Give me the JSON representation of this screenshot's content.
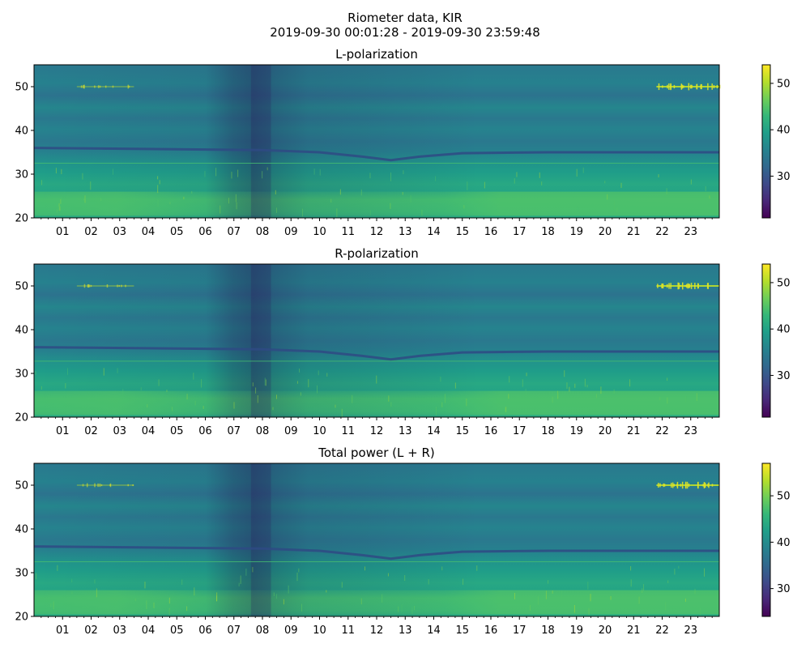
{
  "figure": {
    "title_line1": "Riometer data, KIR",
    "title_line2": "2019-09-30 00:01:28 - 2019-09-30 23:59:48"
  },
  "colormap": "viridis",
  "chart_data": [
    {
      "type": "heatmap",
      "title": "L-polarization",
      "xlabel": "",
      "ylabel": "",
      "xlim": [
        0,
        24
      ],
      "ylim": [
        20,
        55
      ],
      "x_tick_labels": [
        "01",
        "02",
        "03",
        "04",
        "05",
        "06",
        "07",
        "08",
        "09",
        "10",
        "11",
        "12",
        "13",
        "14",
        "15",
        "16",
        "17",
        "18",
        "19",
        "20",
        "21",
        "22",
        "23"
      ],
      "y_ticks": [
        20,
        30,
        40,
        50
      ],
      "colorbar": {
        "ticks": [
          30,
          40,
          50
        ],
        "range": [
          21,
          54
        ]
      },
      "features": {
        "horizontal_line_y": 32.5,
        "dip_curve": [
          [
            0,
            36
          ],
          [
            8,
            35.5
          ],
          [
            10,
            35
          ],
          [
            11.5,
            34
          ],
          [
            12.5,
            33.2
          ],
          [
            13.5,
            34
          ],
          [
            15,
            34.8
          ],
          [
            18,
            35
          ],
          [
            24,
            35
          ]
        ],
        "dark_vertical_band_x": [
          7.6,
          8.3
        ],
        "bright_band_y": [
          20.5,
          26
        ],
        "spiky_band_y": 50,
        "spiky_regions_x": [
          [
            1.5,
            3.5
          ],
          [
            21.8,
            24
          ]
        ]
      }
    },
    {
      "type": "heatmap",
      "title": "R-polarization",
      "xlabel": "",
      "ylabel": "",
      "xlim": [
        0,
        24
      ],
      "ylim": [
        20,
        55
      ],
      "x_tick_labels": [
        "01",
        "02",
        "03",
        "04",
        "05",
        "06",
        "07",
        "08",
        "09",
        "10",
        "11",
        "12",
        "13",
        "14",
        "15",
        "16",
        "17",
        "18",
        "19",
        "20",
        "21",
        "22",
        "23"
      ],
      "y_ticks": [
        20,
        30,
        40,
        50
      ],
      "colorbar": {
        "ticks": [
          30,
          40,
          50
        ],
        "range": [
          21,
          54
        ]
      },
      "features": {
        "horizontal_line_y": 32.8,
        "dip_curve": [
          [
            0,
            36
          ],
          [
            8,
            35.5
          ],
          [
            10,
            35
          ],
          [
            11.5,
            34
          ],
          [
            12.5,
            33.2
          ],
          [
            13.5,
            34
          ],
          [
            15,
            34.8
          ],
          [
            18,
            35
          ],
          [
            24,
            35
          ]
        ],
        "dark_vertical_band_x": [
          7.6,
          8.3
        ],
        "bright_band_y": [
          20.5,
          26
        ],
        "spiky_band_y": 50,
        "spiky_regions_x": [
          [
            1.5,
            3.5
          ],
          [
            21.8,
            24
          ]
        ]
      }
    },
    {
      "type": "heatmap",
      "title": "Total power (L + R)",
      "xlabel": "",
      "ylabel": "",
      "xlim": [
        0,
        24
      ],
      "ylim": [
        20,
        55
      ],
      "x_tick_labels": [
        "01",
        "02",
        "03",
        "04",
        "05",
        "06",
        "07",
        "08",
        "09",
        "10",
        "11",
        "12",
        "13",
        "14",
        "15",
        "16",
        "17",
        "18",
        "19",
        "20",
        "21",
        "22",
        "23"
      ],
      "y_ticks": [
        20,
        30,
        40,
        50
      ],
      "colorbar": {
        "ticks": [
          30,
          40,
          50
        ],
        "range": [
          24,
          57
        ]
      },
      "features": {
        "horizontal_line_y": 32.5,
        "dip_curve": [
          [
            0,
            36
          ],
          [
            8,
            35.5
          ],
          [
            10,
            35
          ],
          [
            11.5,
            34
          ],
          [
            12.5,
            33.2
          ],
          [
            13.5,
            34
          ],
          [
            15,
            34.8
          ],
          [
            18,
            35
          ],
          [
            24,
            35
          ]
        ],
        "dark_vertical_band_x": [
          7.6,
          8.3
        ],
        "bright_band_y": [
          20.5,
          26
        ],
        "spiky_band_y": 50,
        "spiky_regions_x": [
          [
            1.5,
            3.5
          ],
          [
            21.8,
            24
          ]
        ]
      }
    }
  ]
}
